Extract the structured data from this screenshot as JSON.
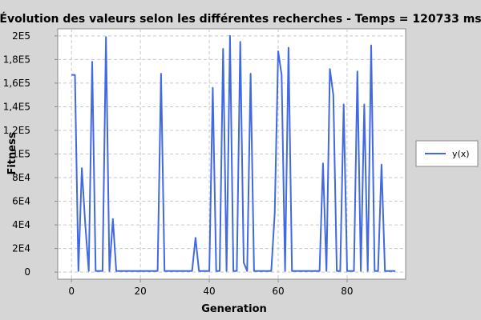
{
  "chart_data": {
    "type": "line",
    "title": "Évolution des valeurs selon les différentes recherches - Temps = 120733 ms",
    "xlabel": "Generation",
    "ylabel": "Fitness",
    "xlim": [
      -4,
      97
    ],
    "ylim": [
      -6000,
      206000
    ],
    "x_ticks": [
      0,
      20,
      40,
      60,
      80
    ],
    "x_tick_labels": [
      "0",
      "20",
      "40",
      "60",
      "80"
    ],
    "y_ticks": [
      0,
      20000,
      40000,
      60000,
      80000,
      100000,
      120000,
      140000,
      160000,
      180000,
      200000
    ],
    "y_tick_labels": [
      "0",
      "2E4",
      "4E4",
      "6E4",
      "8E4",
      "1E5",
      "1,2E5",
      "1,4E5",
      "1,6E5",
      "1,8E5",
      "2E5"
    ],
    "grid": true,
    "legend_position": "right",
    "series": [
      {
        "name": "y(x)",
        "color": "#4169e1",
        "x": [
          0,
          1,
          2,
          3,
          4,
          5,
          6,
          7,
          8,
          9,
          10,
          11,
          12,
          13,
          14,
          15,
          16,
          17,
          18,
          19,
          20,
          21,
          22,
          23,
          24,
          25,
          26,
          27,
          28,
          29,
          30,
          31,
          32,
          33,
          34,
          35,
          36,
          37,
          38,
          39,
          40,
          41,
          42,
          43,
          44,
          45,
          46,
          47,
          48,
          49,
          50,
          51,
          52,
          53,
          54,
          55,
          56,
          57,
          58,
          59,
          60,
          61,
          62,
          63,
          64,
          65,
          66,
          67,
          68,
          69,
          70,
          71,
          72,
          73,
          74,
          75,
          76,
          77,
          78,
          79,
          80,
          81,
          82,
          83,
          84,
          85,
          86,
          87,
          88,
          89,
          90,
          91,
          92,
          93,
          94
        ],
        "y": [
          167000,
          167000,
          1000,
          88000,
          40000,
          1000,
          178000,
          1000,
          1000,
          1000,
          199000,
          1000,
          45000,
          1000,
          1000,
          1000,
          1000,
          1000,
          1000,
          1000,
          1000,
          1000,
          1000,
          1000,
          1000,
          1000,
          168000,
          1000,
          1000,
          1000,
          1000,
          1000,
          1000,
          1000,
          1000,
          1000,
          29000,
          1000,
          1000,
          1000,
          1000,
          156000,
          1000,
          1000,
          189000,
          1000,
          200000,
          1000,
          1000,
          195000,
          8000,
          1000,
          168000,
          1000,
          1000,
          1000,
          1000,
          1000,
          1000,
          50000,
          187000,
          167000,
          1000,
          190000,
          1000,
          1000,
          1000,
          1000,
          1000,
          1000,
          1000,
          1000,
          1000,
          92000,
          1000,
          172000,
          150000,
          1000,
          1000,
          142000,
          1000,
          1000,
          1000,
          170000,
          1000,
          142000,
          1000,
          192000,
          1000,
          1000,
          91000,
          1000,
          1000,
          1000,
          1000
        ]
      }
    ]
  }
}
